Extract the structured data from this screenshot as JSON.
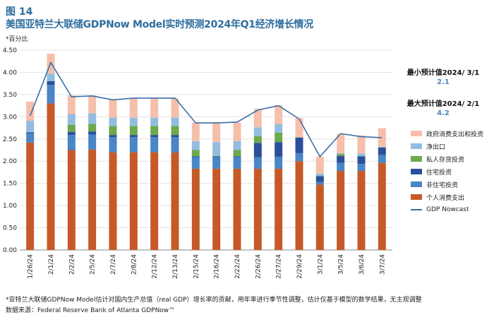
{
  "figure_label": "图 14",
  "figure_title": "美国亚特兰大联储GDPNow Model实时预测2024年Q1经济增长情况",
  "unit_label": "*百分比",
  "annotations": {
    "min": {
      "title": "最小预计值2024/ 3/1",
      "value": "2.1"
    },
    "max": {
      "title": "最大预计值2024/ 2/1",
      "value": "4.2"
    }
  },
  "legend": [
    {
      "name": "政府消费支出和投资",
      "color": "#f6bfaa",
      "type": "bar"
    },
    {
      "name": "净出口",
      "color": "#92bde0",
      "type": "bar"
    },
    {
      "name": "私人存货投资",
      "color": "#6ea84a",
      "type": "bar"
    },
    {
      "name": "住宅投资",
      "color": "#2c4f9c",
      "type": "bar"
    },
    {
      "name": "非住宅投资",
      "color": "#4a86c5",
      "type": "bar"
    },
    {
      "name": "个人消费支出",
      "color": "#c55a28",
      "type": "bar"
    },
    {
      "name": "GDP Nowcast",
      "color": "#3b6fa8",
      "type": "line"
    }
  ],
  "chart_data": {
    "type": "bar",
    "stacked": true,
    "title": "美国亚特兰大联储GDPNow Model实时预测2024年Q1经济增长情况",
    "ylabel": "*百分比",
    "ylim": [
      0,
      4.5
    ],
    "yticks": [
      "0.00",
      "0.50",
      "1.00",
      "1.50",
      "2.00",
      "2.50",
      "3.00",
      "3.50",
      "4.00",
      "4.50"
    ],
    "categories": [
      "1/26/24",
      "2/1/24",
      "2/2/24",
      "2/5/24",
      "2/7/24",
      "2/8/24",
      "2/12/24",
      "2/13/24",
      "2/15/24",
      "2/16/24",
      "2/22/24",
      "2/26/24",
      "2/27/24",
      "2/29/24",
      "3/1/24",
      "3/5/24",
      "3/6/24",
      "3/7/24"
    ],
    "series": [
      {
        "name": "个人消费支出",
        "color": "#c55a28",
        "values": [
          2.42,
          3.3,
          2.25,
          2.26,
          2.2,
          2.2,
          2.2,
          2.2,
          1.83,
          1.83,
          1.83,
          1.83,
          1.83,
          2.0,
          1.47,
          1.78,
          1.78,
          1.96
        ]
      },
      {
        "name": "非住宅投资",
        "color": "#4a86c5",
        "values": [
          0.2,
          0.42,
          0.34,
          0.34,
          0.34,
          0.34,
          0.34,
          0.34,
          0.26,
          0.26,
          0.26,
          0.26,
          0.27,
          0.18,
          0.06,
          0.18,
          0.16,
          0.18
        ]
      },
      {
        "name": "住宅投资",
        "color": "#2c4f9c",
        "values": [
          0.03,
          0.08,
          0.07,
          0.07,
          0.05,
          0.05,
          0.05,
          0.05,
          0.02,
          0.02,
          0.02,
          0.32,
          0.33,
          0.35,
          0.13,
          0.16,
          0.17,
          0.17
        ]
      },
      {
        "name": "私人存货投资",
        "color": "#6ea84a",
        "values": [
          0.0,
          0.0,
          0.16,
          0.17,
          0.2,
          0.2,
          0.2,
          0.2,
          0.14,
          0.01,
          0.14,
          0.15,
          0.21,
          0.01,
          0.01,
          0.04,
          0.01,
          0.0
        ]
      },
      {
        "name": "净出口",
        "color": "#92bde0",
        "values": [
          0.26,
          0.17,
          0.24,
          0.24,
          0.19,
          0.19,
          0.19,
          0.19,
          0.2,
          0.31,
          0.2,
          0.2,
          0.19,
          0.0,
          0.05,
          0.02,
          0.05,
          0.01
        ]
      },
      {
        "name": "政府消费支出和投资",
        "color": "#f6bfaa",
        "values": [
          0.43,
          0.45,
          0.42,
          0.4,
          0.42,
          0.43,
          0.43,
          0.43,
          0.42,
          0.42,
          0.42,
          0.42,
          0.43,
          0.43,
          0.38,
          0.43,
          0.41,
          0.42
        ]
      }
    ],
    "line": {
      "name": "GDP Nowcast",
      "color": "#3b6fa8",
      "values": [
        3.02,
        4.22,
        3.45,
        3.47,
        3.38,
        3.42,
        3.42,
        3.42,
        2.86,
        2.86,
        2.88,
        3.15,
        3.25,
        2.95,
        2.1,
        2.62,
        2.55,
        2.53
      ]
    }
  },
  "footnote": {
    "line1": "*亚特兰大联储GDPNow Model估计对国内生产总值（real GDP）增长率的贡献，用年率进行季节性调整，估计仅基于模型的数学结果，无主观调整",
    "line2": "数据来源：Federal Reserve Bank of Atlanta GDPNow™"
  }
}
